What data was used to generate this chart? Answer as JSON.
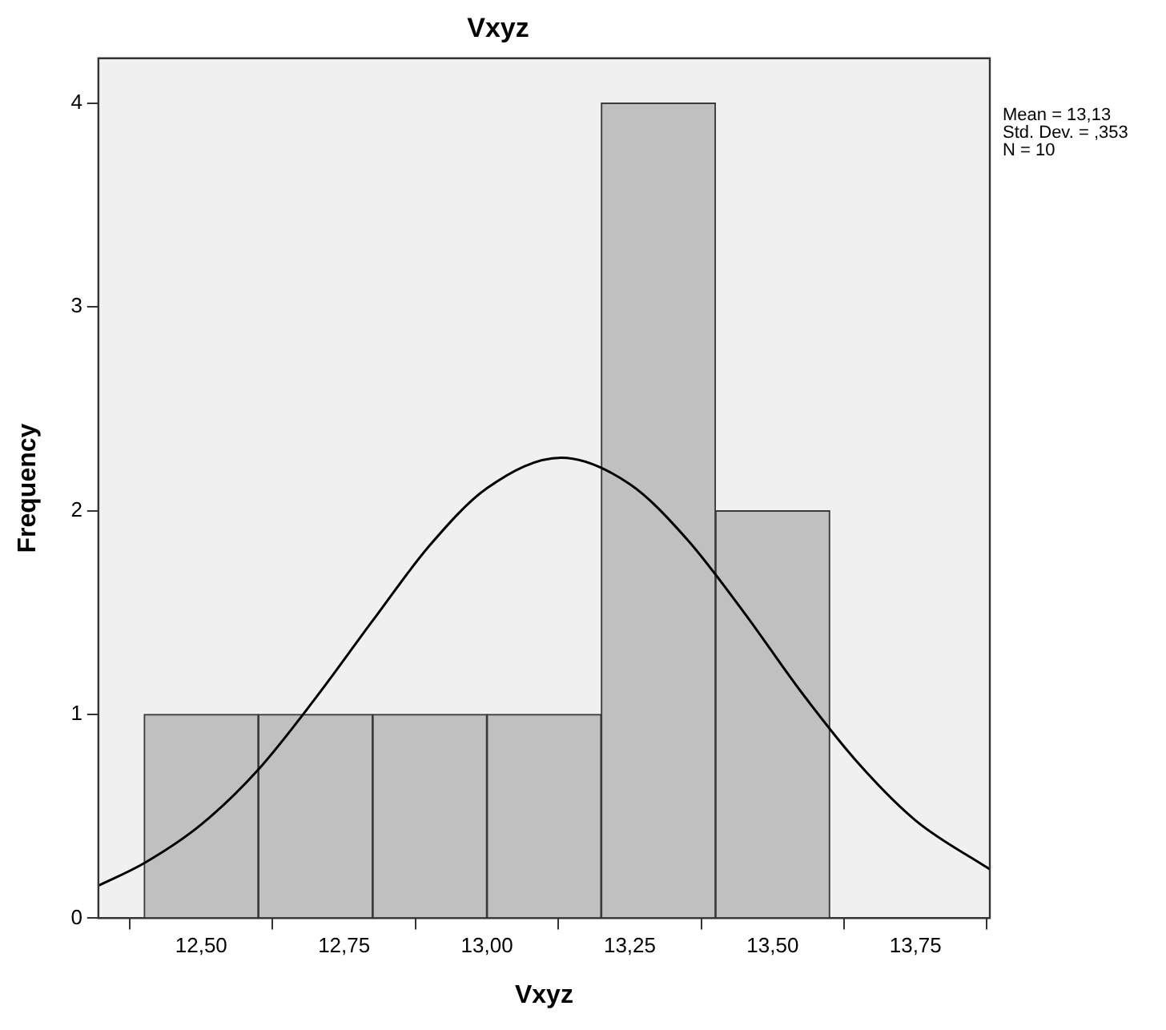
{
  "chart_data": {
    "type": "histogram",
    "title": "Vxyz",
    "xlabel": "Vxyz",
    "ylabel": "Frequency",
    "bins": [
      12.4,
      12.6,
      12.8,
      13.0,
      13.2,
      13.4,
      13.6
    ],
    "values": [
      1,
      1,
      1,
      1,
      4,
      2
    ],
    "color": "#c0c0c0",
    "series": [
      {
        "type": "line",
        "color": "#000000",
        "x": [
          12.32,
          12.4,
          12.5,
          12.6,
          12.7,
          12.8,
          12.9,
          13.0,
          13.13,
          13.25,
          13.35,
          13.45,
          13.55,
          13.65,
          13.75,
          13.88
        ],
        "values": [
          0.16,
          0.27,
          0.46,
          0.73,
          1.08,
          1.46,
          1.83,
          2.11,
          2.26,
          2.13,
          1.86,
          1.5,
          1.11,
          0.76,
          0.48,
          0.24
        ]
      }
    ],
    "xlim": [
      12.32,
      13.88
    ],
    "xticks": [
      {
        "value": 12.5,
        "label": "12,50"
      },
      {
        "value": 12.75,
        "label": "12,75"
      },
      {
        "value": 13.0,
        "label": "13,00"
      },
      {
        "value": 13.25,
        "label": "13,25"
      },
      {
        "value": 13.5,
        "label": "13,50"
      },
      {
        "value": 13.75,
        "label": "13,75"
      }
    ],
    "ylim": [
      0,
      4.22
    ],
    "yticks": [
      0,
      1,
      2,
      3,
      4
    ],
    "annotations": [
      "Mean = 13,13",
      "Std. Dev. = ,353",
      "N = 10"
    ],
    "grid": false,
    "legend": false,
    "marker": "none",
    "line_style": "solid"
  }
}
